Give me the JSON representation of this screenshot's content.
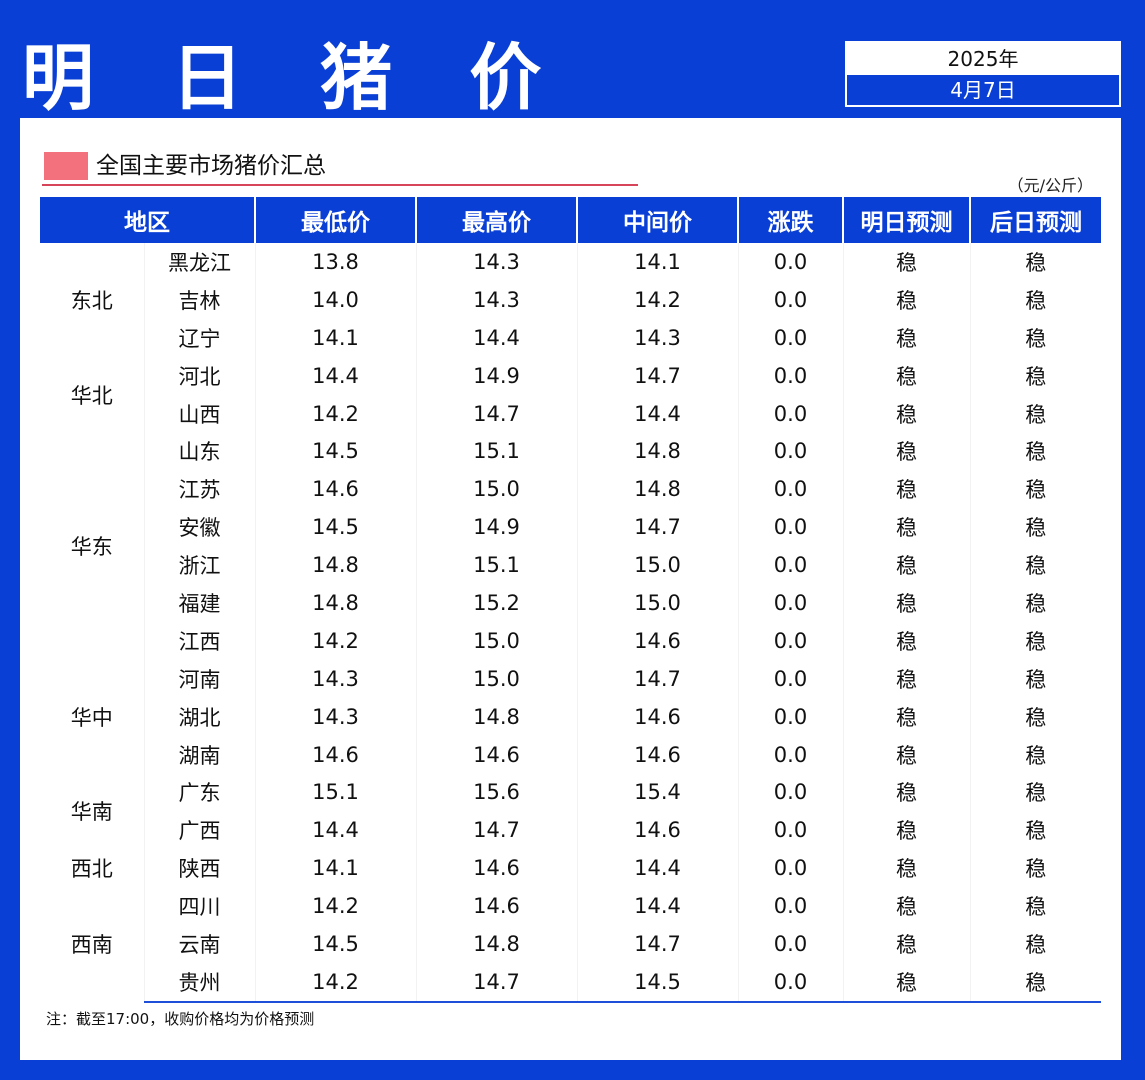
{
  "header": {
    "title": "明 日 猪 价",
    "date_year": "2025年",
    "date_day": "4月7日"
  },
  "section": {
    "title": "全国主要市场猪价汇总",
    "unit": "（元/公斤）"
  },
  "table": {
    "columns": [
      "地区",
      "最低价",
      "最高价",
      "中间价",
      "涨跌",
      "明日预测",
      "后日预测"
    ],
    "groups": [
      {
        "region": "东北",
        "rows": [
          {
            "province": "黑龙江",
            "min": "13.8",
            "max": "14.3",
            "mid": "14.1",
            "change": "0.0",
            "tomorrow": "稳",
            "day_after": "稳"
          },
          {
            "province": "吉林",
            "min": "14.0",
            "max": "14.3",
            "mid": "14.2",
            "change": "0.0",
            "tomorrow": "稳",
            "day_after": "稳"
          },
          {
            "province": "辽宁",
            "min": "14.1",
            "max": "14.4",
            "mid": "14.3",
            "change": "0.0",
            "tomorrow": "稳",
            "day_after": "稳"
          }
        ]
      },
      {
        "region": "华北",
        "rows": [
          {
            "province": "河北",
            "min": "14.4",
            "max": "14.9",
            "mid": "14.7",
            "change": "0.0",
            "tomorrow": "稳",
            "day_after": "稳"
          },
          {
            "province": "山西",
            "min": "14.2",
            "max": "14.7",
            "mid": "14.4",
            "change": "0.0",
            "tomorrow": "稳",
            "day_after": "稳"
          }
        ]
      },
      {
        "region": "华东",
        "rows": [
          {
            "province": "山东",
            "min": "14.5",
            "max": "15.1",
            "mid": "14.8",
            "change": "0.0",
            "tomorrow": "稳",
            "day_after": "稳"
          },
          {
            "province": "江苏",
            "min": "14.6",
            "max": "15.0",
            "mid": "14.8",
            "change": "0.0",
            "tomorrow": "稳",
            "day_after": "稳"
          },
          {
            "province": "安徽",
            "min": "14.5",
            "max": "14.9",
            "mid": "14.7",
            "change": "0.0",
            "tomorrow": "稳",
            "day_after": "稳"
          },
          {
            "province": "浙江",
            "min": "14.8",
            "max": "15.1",
            "mid": "15.0",
            "change": "0.0",
            "tomorrow": "稳",
            "day_after": "稳"
          },
          {
            "province": "福建",
            "min": "14.8",
            "max": "15.2",
            "mid": "15.0",
            "change": "0.0",
            "tomorrow": "稳",
            "day_after": "稳"
          },
          {
            "province": "江西",
            "min": "14.2",
            "max": "15.0",
            "mid": "14.6",
            "change": "0.0",
            "tomorrow": "稳",
            "day_after": "稳"
          }
        ]
      },
      {
        "region": "华中",
        "rows": [
          {
            "province": "河南",
            "min": "14.3",
            "max": "15.0",
            "mid": "14.7",
            "change": "0.0",
            "tomorrow": "稳",
            "day_after": "稳"
          },
          {
            "province": "湖北",
            "min": "14.3",
            "max": "14.8",
            "mid": "14.6",
            "change": "0.0",
            "tomorrow": "稳",
            "day_after": "稳"
          },
          {
            "province": "湖南",
            "min": "14.6",
            "max": "14.6",
            "mid": "14.6",
            "change": "0.0",
            "tomorrow": "稳",
            "day_after": "稳"
          }
        ]
      },
      {
        "region": "华南",
        "rows": [
          {
            "province": "广东",
            "min": "15.1",
            "max": "15.6",
            "mid": "15.4",
            "change": "0.0",
            "tomorrow": "稳",
            "day_after": "稳"
          },
          {
            "province": "广西",
            "min": "14.4",
            "max": "14.7",
            "mid": "14.6",
            "change": "0.0",
            "tomorrow": "稳",
            "day_after": "稳"
          }
        ]
      },
      {
        "region": "西北",
        "rows": [
          {
            "province": "陕西",
            "min": "14.1",
            "max": "14.6",
            "mid": "14.4",
            "change": "0.0",
            "tomorrow": "稳",
            "day_after": "稳"
          }
        ]
      },
      {
        "region": "西南",
        "rows": [
          {
            "province": "四川",
            "min": "14.2",
            "max": "14.6",
            "mid": "14.4",
            "change": "0.0",
            "tomorrow": "稳",
            "day_after": "稳"
          },
          {
            "province": "云南",
            "min": "14.5",
            "max": "14.8",
            "mid": "14.7",
            "change": "0.0",
            "tomorrow": "稳",
            "day_after": "稳"
          },
          {
            "province": "贵州",
            "min": "14.2",
            "max": "14.7",
            "mid": "14.5",
            "change": "0.0",
            "tomorrow": "稳",
            "day_after": "稳"
          }
        ]
      }
    ]
  },
  "note": "注：截至17:00，收购价格均为价格预测",
  "colors": {
    "brand_blue": "#0a3fd6",
    "marker_pink": "#f2717d",
    "underline_red": "#d6455a"
  }
}
